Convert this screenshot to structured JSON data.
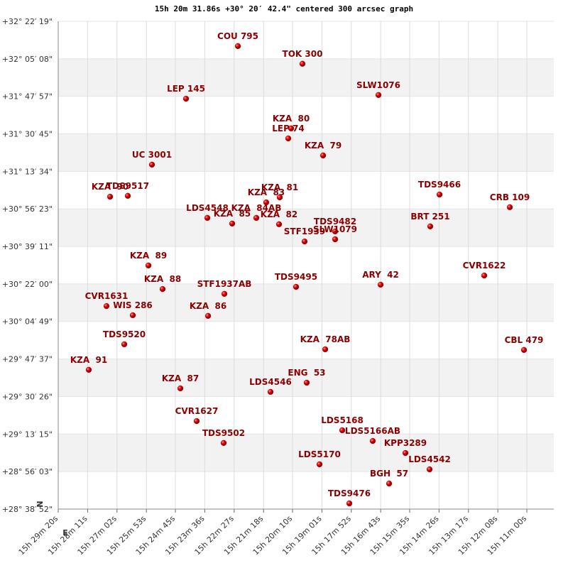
{
  "chart_data": {
    "type": "scatter",
    "title": "15h 20m 31.86s +30° 20′ 42.4\" centered 300 arcsec graph",
    "compass": {
      "north": "N",
      "east": "E"
    },
    "color": "#cc0000",
    "label_color": "#8b0000",
    "band_color": "#f2f2f2",
    "grid": true,
    "xlim": [
      1760,
      660
    ],
    "xticks": [
      {
        "value": 1760,
        "label": "15h 29m 20s"
      },
      {
        "value": 1691,
        "label": "15h 28m 11s"
      },
      {
        "value": 1622,
        "label": "15h 27m 02s"
      },
      {
        "value": 1553,
        "label": "15h 25m 53s"
      },
      {
        "value": 1485,
        "label": "15h 24m 45s"
      },
      {
        "value": 1416,
        "label": "15h 23m 36s"
      },
      {
        "value": 1347,
        "label": "15h 22m 27s"
      },
      {
        "value": 1278,
        "label": "15h 21m 18s"
      },
      {
        "value": 1210,
        "label": "15h 20m 10s"
      },
      {
        "value": 1141,
        "label": "15h 19m 01s"
      },
      {
        "value": 1072,
        "label": "15h 17m 52s"
      },
      {
        "value": 1003,
        "label": "15h 16m 43s"
      },
      {
        "value": 935,
        "label": "15h 15m 35s"
      },
      {
        "value": 866,
        "label": "15h 14m 26s"
      },
      {
        "value": 797,
        "label": "15h 13m 17s"
      },
      {
        "value": 728,
        "label": "15h 12m 08s"
      },
      {
        "value": 660,
        "label": "15h 11m 00s"
      }
    ],
    "ylim": [
      1718.87,
      1942.32
    ],
    "yticks": [
      {
        "value": 1942.32,
        "label": "+32° 22′ 19\""
      },
      {
        "value": 1925.13,
        "label": "+32° 05′ 08\""
      },
      {
        "value": 1907.95,
        "label": "+31° 47′ 57\""
      },
      {
        "value": 1890.75,
        "label": "+31° 30′ 45\""
      },
      {
        "value": 1873.57,
        "label": "+31° 13′ 34\""
      },
      {
        "value": 1856.38,
        "label": "+30° 56′ 23\""
      },
      {
        "value": 1839.18,
        "label": "+30° 39′ 11\""
      },
      {
        "value": 1822.0,
        "label": "+30° 22′ 00\""
      },
      {
        "value": 1804.82,
        "label": "+30° 04′ 49\""
      },
      {
        "value": 1787.62,
        "label": "+29° 47′ 37\""
      },
      {
        "value": 1770.43,
        "label": "+29° 30′ 26\""
      },
      {
        "value": 1753.25,
        "label": "+29° 13′ 15\""
      },
      {
        "value": 1736.05,
        "label": "+28° 56′ 03\""
      },
      {
        "value": 1718.87,
        "label": "+28° 38′ 52\""
      }
    ],
    "labels": [
      "COU 795",
      "TOK 300",
      "SLW1076",
      "LEP 145",
      "KZA  80",
      "LEP 74",
      "KZA  79",
      "UC 3001",
      "KZA  90",
      "TDS9517",
      "TDS9466",
      "CRB 109",
      "KZA  83",
      "KZA  81",
      "LDS4548",
      "KZA  85",
      "KZA  84AB",
      "KZA  82",
      "BRT 251",
      "TDS9482",
      "SLW1079",
      "STF1939",
      "KZA  89",
      "CVR1622",
      "ARY  42",
      "TDS9495",
      "KZA  88",
      "STF1937AB",
      "CVR1631",
      "WIS 286",
      "KZA  86",
      "TDS9520",
      "KZA  78AB",
      "CBL 479",
      "KZA  91",
      "ENG  53",
      "KZA  87",
      "LDS4546",
      "CVR1627",
      "LDS5168",
      "LDS5166AB",
      "TDS9502",
      "KPP3289",
      "LDS5170",
      "LDS4542",
      "BGH  57",
      "TDS9476"
    ],
    "x": [
      1338.3,
      1186.7,
      1008.3,
      1460,
      1213.3,
      1220,
      1138.3,
      1540,
      1638.3,
      1596.7,
      865,
      700,
      1271.7,
      1240,
      1410,
      1351.7,
      1295,
      1241.7,
      886.7,
      1110,
      1110,
      1181.7,
      1548.3,
      760,
      1003.3,
      1201.7,
      1515,
      1370,
      1646.7,
      1585,
      1408.3,
      1605,
      1133.3,
      666.7,
      1688.3,
      1176.7,
      1473.3,
      1261.7,
      1435,
      1093.3,
      1021.7,
      1371.7,
      945,
      1146.7,
      888.3,
      983.3,
      1076.7
    ],
    "values": [
      1930.97,
      1922.87,
      1908.57,
      1906.87,
      1893.27,
      1888.67,
      1880.87,
      1876.67,
      1861.97,
      1862.37,
      1862.97,
      1857.17,
      1859.37,
      1861.67,
      1852.27,
      1849.67,
      1852.27,
      1849.37,
      1848.37,
      1846.07,
      1842.47,
      1841.47,
      1830.47,
      1825.87,
      1821.67,
      1820.67,
      1819.67,
      1817.47,
      1811.87,
      1807.67,
      1807.37,
      1794.37,
      1792.07,
      1791.77,
      1782.67,
      1776.77,
      1774.17,
      1772.57,
      1759.17,
      1754.97,
      1750.07,
      1749.17,
      1744.57,
      1739.37,
      1737.07,
      1730.57,
      1721.47
    ]
  }
}
